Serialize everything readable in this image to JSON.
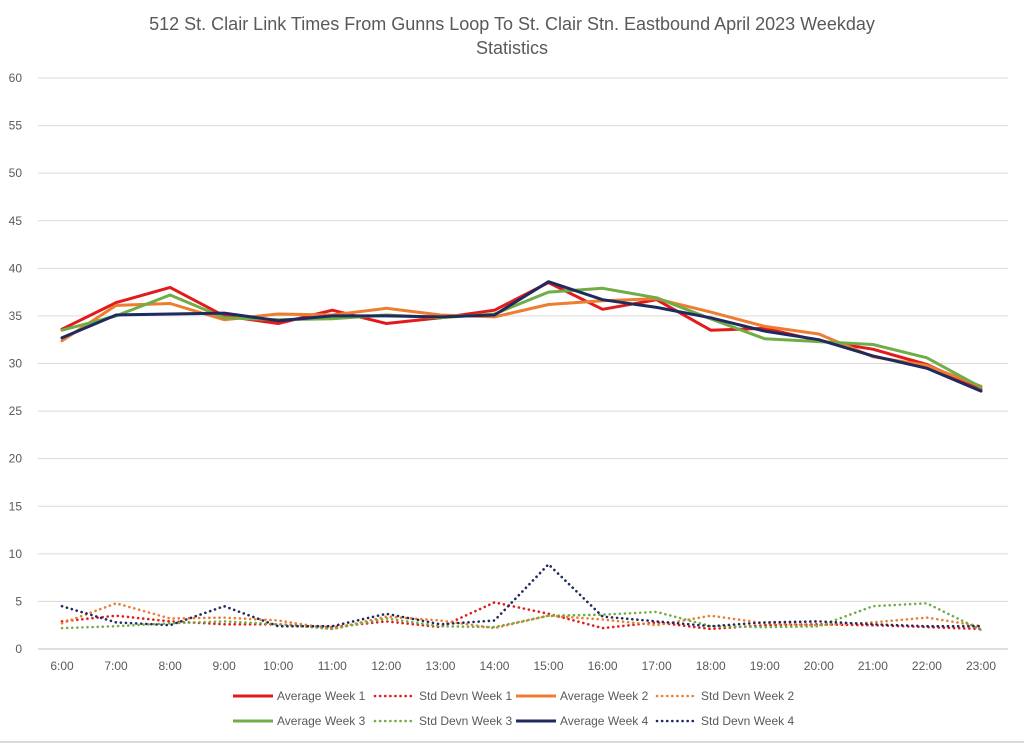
{
  "chart_data": {
    "type": "line",
    "title_line1": "512 St. Clair Link Times From Gunns Loop To St. Clair Stn. Eastbound April 2023 Weekday",
    "title_line2": "Statistics",
    "xlabel": "",
    "ylabel": "",
    "ylim": [
      0,
      60
    ],
    "yticks": [
      0,
      5,
      10,
      15,
      20,
      25,
      30,
      35,
      40,
      45,
      50,
      55,
      60
    ],
    "grid": "horizontal",
    "legend_position": "bottom",
    "categories": [
      "6:00",
      "7:00",
      "8:00",
      "9:00",
      "10:00",
      "11:00",
      "12:00",
      "13:00",
      "14:00",
      "15:00",
      "16:00",
      "17:00",
      "18:00",
      "19:00",
      "20:00",
      "21:00",
      "22:00",
      "23:00"
    ],
    "series": [
      {
        "name": "Average Week 1",
        "color": "#e31a1c",
        "style": "solid",
        "values": [
          33.6,
          36.4,
          38.0,
          35.0,
          34.2,
          35.6,
          34.2,
          34.8,
          35.6,
          38.5,
          35.7,
          36.7,
          33.5,
          33.7,
          32.4,
          31.5,
          29.9,
          27.3
        ]
      },
      {
        "name": "Std Devn Week 1",
        "color": "#e31a1c",
        "style": "dotted",
        "values": [
          2.9,
          3.5,
          2.9,
          2.6,
          2.6,
          2.3,
          2.9,
          2.3,
          4.9,
          3.7,
          2.2,
          2.8,
          2.1,
          2.5,
          2.6,
          2.5,
          2.3,
          2.1
        ]
      },
      {
        "name": "Average Week 2",
        "color": "#ed7d31",
        "style": "solid",
        "values": [
          32.4,
          36.1,
          36.3,
          34.6,
          35.2,
          35.1,
          35.8,
          35.1,
          34.9,
          36.2,
          36.6,
          36.8,
          35.4,
          33.9,
          33.1,
          30.7,
          29.8,
          27.6
        ]
      },
      {
        "name": "Std Devn Week 2",
        "color": "#ed7d31",
        "style": "dotted",
        "values": [
          2.7,
          4.8,
          3.2,
          3.3,
          3.0,
          2.1,
          3.4,
          3.0,
          2.2,
          3.5,
          3.1,
          2.5,
          3.5,
          2.7,
          2.5,
          2.8,
          3.3,
          2.4
        ]
      },
      {
        "name": "Average Week 3",
        "color": "#70ad47",
        "style": "solid",
        "values": [
          33.5,
          35.0,
          37.2,
          34.8,
          34.6,
          34.7,
          35.1,
          34.8,
          35.2,
          37.5,
          37.9,
          36.9,
          34.7,
          32.6,
          32.3,
          32.0,
          30.6,
          27.5
        ]
      },
      {
        "name": "Std Devn Week 3",
        "color": "#70ad47",
        "style": "dotted",
        "values": [
          2.2,
          2.4,
          2.7,
          2.9,
          2.6,
          2.1,
          3.2,
          2.4,
          2.3,
          3.5,
          3.6,
          3.9,
          2.4,
          2.3,
          2.4,
          4.5,
          4.8,
          2.0
        ]
      },
      {
        "name": "Average Week 4",
        "color": "#1f2a5e",
        "style": "solid",
        "values": [
          32.7,
          35.1,
          35.2,
          35.3,
          34.5,
          35.0,
          35.0,
          34.9,
          35.1,
          38.6,
          36.7,
          35.9,
          34.8,
          33.4,
          32.5,
          30.8,
          29.5,
          27.1
        ]
      },
      {
        "name": "Std Devn Week 4",
        "color": "#1f2a5e",
        "style": "dotted",
        "values": [
          4.5,
          2.8,
          2.5,
          4.5,
          2.4,
          2.4,
          3.7,
          2.6,
          3.0,
          8.9,
          3.4,
          2.9,
          2.4,
          2.8,
          2.9,
          2.6,
          2.4,
          2.4
        ]
      }
    ]
  }
}
